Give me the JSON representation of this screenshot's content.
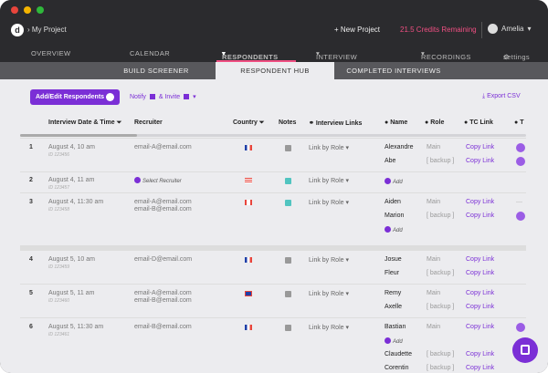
{
  "header": {
    "project": "My Project",
    "new_project": "New Project",
    "credits": "21.5 Credits Remaining",
    "user": "Amelia"
  },
  "nav": {
    "items": [
      "OVERVIEW",
      "CALENDAR",
      "RESPONDENTS",
      "INTERVIEW PREP",
      "RECORDINGS",
      "settings"
    ]
  },
  "subnav": {
    "items": [
      "BUILD SCREENER",
      "RESPONDENT HUB",
      "COMPLETED INTERVIEWS"
    ]
  },
  "toolbar": {
    "add_edit": "Add/Edit Respondents",
    "notify": "Notify",
    "invite": "& Invite",
    "export": "Export CSV"
  },
  "table": {
    "headers": {
      "date": "Interview Date & Time",
      "recruiter": "Recruiter",
      "country": "Country",
      "notes": "Notes",
      "links": "Interview Links",
      "name": "Name",
      "role": "Role",
      "tc": "TC Link",
      "t": "T"
    },
    "rows": [
      {
        "num": "1",
        "date": "August 4, 10 am",
        "id": "ID 123456",
        "recruiter": "email-A@email.com",
        "recruiter2": "",
        "link": "Link by Role",
        "names": [
          "Alexandre",
          "Abe"
        ],
        "roles": [
          "Main",
          "[ backup ]"
        ],
        "copy": "Copy Link"
      },
      {
        "num": "2",
        "date": "August 4, 11 am",
        "id": "ID 123457",
        "recruiter": "Select Recruiter",
        "recruiter2": "",
        "link": "Link by Role",
        "add": "Add"
      },
      {
        "num": "3",
        "date": "August 4, 11:30 am",
        "id": "ID 123458",
        "recruiter": "email-A@email.com",
        "recruiter2": "email-B@email.com",
        "link": "Link by Role",
        "names": [
          "Aiden",
          "Marion"
        ],
        "roles": [
          "Main",
          "[ backup ]"
        ],
        "copy": "Copy Link",
        "add": "Add"
      },
      {
        "num": "4",
        "date": "August 5, 10 am",
        "id": "ID 123459",
        "recruiter": "email-D@email.com",
        "recruiter2": "",
        "link": "Link by Role",
        "names": [
          "Josue",
          "Fleur"
        ],
        "roles": [
          "Main",
          "[ backup ]"
        ],
        "copy": "Copy Link"
      },
      {
        "num": "5",
        "date": "August 5, 11 am",
        "id": "ID 123460",
        "recruiter": "email-A@email.com",
        "recruiter2": "email-B@email.com",
        "link": "Link by Role",
        "names": [
          "Remy",
          "Axelle"
        ],
        "roles": [
          "Main",
          "[ backup ]"
        ],
        "copy": "Copy Link"
      },
      {
        "num": "6",
        "date": "August 5, 11:30 am",
        "id": "ID 123461",
        "recruiter": "email-B@email.com",
        "recruiter2": "",
        "link": "Link by Role",
        "names": [
          "Bastian",
          "Claudette",
          "Corentin"
        ],
        "roles": [
          "Main",
          "[ backup ]",
          "[ backup ]"
        ],
        "copy": "Copy Link",
        "add": "Add"
      }
    ]
  },
  "colors": {
    "accent": "#7b2fd6",
    "credits": "#ef4f82",
    "topbar": "#2b2b2e"
  }
}
